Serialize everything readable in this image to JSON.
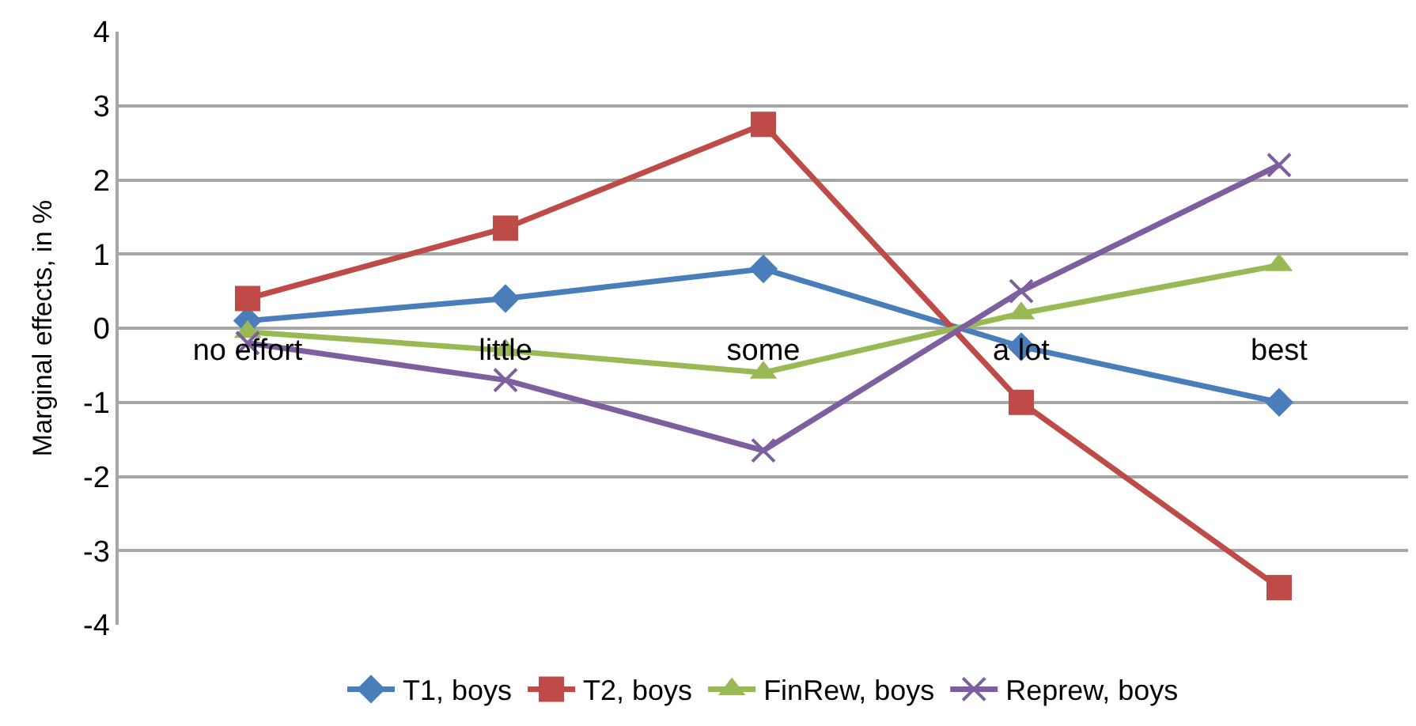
{
  "chart_data": {
    "type": "line",
    "ylabel": "Marginal effects, in %",
    "categories": [
      "no effort",
      "little",
      "some",
      "a lot",
      "best"
    ],
    "series": [
      {
        "name": "T1, boys",
        "color": "#4a7ebb",
        "marker": "diamond",
        "values": [
          0.1,
          0.4,
          0.8,
          -0.25,
          -1.0
        ]
      },
      {
        "name": "T2, boys",
        "color": "#be4b48",
        "marker": "square",
        "values": [
          0.4,
          1.35,
          2.75,
          -1.0,
          -3.5
        ]
      },
      {
        "name": "FinRew, boys",
        "color": "#98b954",
        "marker": "triangle",
        "values": [
          -0.05,
          -0.3,
          -0.6,
          0.2,
          0.85
        ]
      },
      {
        "name": "Reprew, boys",
        "color": "#7d5fa0",
        "marker": "cross",
        "values": [
          -0.2,
          -0.7,
          -1.65,
          0.5,
          2.2
        ]
      }
    ],
    "ylim": [
      -4,
      4
    ],
    "yticks": [
      -4,
      -3,
      -2,
      -1,
      0,
      1,
      2,
      3,
      4
    ],
    "grid": "y",
    "legend": "bottom",
    "line_style": "solid"
  }
}
